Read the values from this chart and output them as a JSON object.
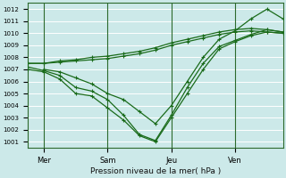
{
  "xlabel": "Pression niveau de la mer( hPa )",
  "bg_color": "#cce9e9",
  "grid_color": "#ffffff",
  "line_color": "#1a6b1a",
  "ylim": [
    1000.5,
    1012.5
  ],
  "yticks": [
    1001,
    1002,
    1003,
    1004,
    1005,
    1006,
    1007,
    1008,
    1009,
    1010,
    1011,
    1012
  ],
  "xlim": [
    0,
    8.0
  ],
  "day_ticks": [
    0.5,
    2.5,
    4.5,
    6.5
  ],
  "day_labels": [
    "Mer",
    "Sam",
    "Jeu",
    "Ven"
  ],
  "vline_positions": [
    0.5,
    2.5,
    4.5,
    6.5
  ],
  "series": [
    {
      "x": [
        0.0,
        0.5,
        1.0,
        1.5,
        2.0,
        2.5,
        3.0,
        3.5,
        4.0,
        4.5,
        5.0,
        5.5,
        6.0,
        6.5,
        7.0,
        7.5,
        8.0
      ],
      "y": [
        1007.0,
        1006.8,
        1006.2,
        1005.0,
        1004.8,
        1003.8,
        1002.8,
        1001.5,
        1001.0,
        1003.0,
        1005.0,
        1007.0,
        1008.7,
        1009.3,
        1009.8,
        1010.1,
        1010.0
      ]
    },
    {
      "x": [
        0.0,
        0.5,
        1.0,
        1.5,
        2.0,
        2.5,
        3.0,
        3.5,
        4.0,
        4.5,
        5.0,
        5.5,
        6.0,
        6.5,
        7.0,
        7.5,
        8.0
      ],
      "y": [
        1007.2,
        1006.9,
        1006.5,
        1005.5,
        1005.2,
        1004.5,
        1003.2,
        1001.6,
        1001.1,
        1003.2,
        1005.5,
        1007.5,
        1008.9,
        1009.4,
        1009.9,
        1010.3,
        1010.1
      ]
    },
    {
      "x": [
        0.0,
        0.5,
        1.0,
        1.5,
        2.0,
        2.5,
        3.0,
        3.5,
        4.0,
        4.5,
        5.0,
        5.5,
        6.0,
        6.5,
        7.0,
        7.5,
        8.0
      ],
      "y": [
        1007.5,
        1007.5,
        1007.6,
        1007.7,
        1007.8,
        1007.9,
        1008.1,
        1008.3,
        1008.6,
        1009.0,
        1009.3,
        1009.6,
        1009.9,
        1010.1,
        1010.2,
        1010.1,
        1010.0
      ]
    },
    {
      "x": [
        0.0,
        0.5,
        1.0,
        1.5,
        2.0,
        2.5,
        3.0,
        3.5,
        4.0,
        4.5,
        5.0,
        5.5,
        6.0,
        6.5,
        7.0,
        7.5,
        8.0
      ],
      "y": [
        1007.5,
        1007.5,
        1007.7,
        1007.8,
        1008.0,
        1008.1,
        1008.3,
        1008.5,
        1008.8,
        1009.2,
        1009.5,
        1009.8,
        1010.1,
        1010.3,
        1010.4,
        1010.3,
        1010.1
      ]
    },
    {
      "x": [
        0.5,
        1.0,
        1.5,
        2.0,
        2.5,
        3.0,
        3.5,
        4.0,
        4.5,
        5.0,
        5.5,
        6.0,
        6.5,
        7.0,
        7.5,
        8.0
      ],
      "y": [
        1007.0,
        1006.8,
        1006.3,
        1005.8,
        1005.0,
        1004.5,
        1003.5,
        1002.5,
        1004.0,
        1006.0,
        1008.0,
        1009.5,
        1010.2,
        1011.2,
        1012.0,
        1011.2
      ]
    }
  ]
}
